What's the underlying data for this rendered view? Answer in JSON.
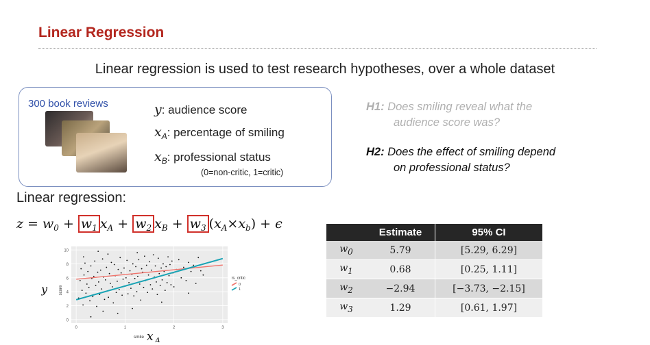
{
  "slide": {
    "title": "Linear Regression",
    "subtitle": "Linear regression is used to test research hypotheses, over a whole dataset"
  },
  "dataset": {
    "label": "300 book reviews",
    "variables": [
      {
        "symbol": "y",
        "subscript": "",
        "description": ": audience score"
      },
      {
        "symbol": "x",
        "subscript": "A",
        "description": ": percentage of smiling"
      },
      {
        "symbol": "x",
        "subscript": "B",
        "description": ": professional status"
      }
    ],
    "status_note": "(0=non-critic, 1=critic)"
  },
  "hypotheses": [
    {
      "tag": "H1:",
      "line1": "Does smiling reveal what the",
      "line2": "audience score was?"
    },
    {
      "tag": "H2:",
      "line1": "Does the effect of smiling depend",
      "line2": "on professional status?"
    }
  ],
  "regression": {
    "label": "Linear regression:",
    "eq": {
      "lhs": "z",
      "eq_sign": " = ",
      "w0": "w",
      "w0_sub": "0",
      "plus": " + ",
      "w1": "w",
      "w1_sub": "1",
      "xa": "x",
      "xa_sub": "A",
      "w2": "w",
      "w2_sub": "2",
      "xb": "x",
      "xb_sub": "B",
      "w3": "w",
      "w3_sub": "3",
      "open": "(",
      "xa2": "x",
      "xa2_sub": "A",
      "times": "×",
      "xb2": "x",
      "xb2_sub": "b",
      "close": ")",
      "eps": "ϵ"
    }
  },
  "coef_table": {
    "headers": [
      "",
      "Estimate",
      "95% CI"
    ],
    "rows": [
      {
        "param": "w",
        "sub": "0",
        "estimate": "5.79",
        "ci": "[5.29, 6.29]"
      },
      {
        "param": "w",
        "sub": "1",
        "estimate": "0.68",
        "ci": "[0.25, 1.11]"
      },
      {
        "param": "w",
        "sub": "2",
        "estimate": "−2.94",
        "ci": "[−3.73, −2.15]"
      },
      {
        "param": "w",
        "sub": "3",
        "estimate": "1.29",
        "ci": "[0.61, 1.97]"
      }
    ]
  },
  "colors": {
    "title": "#b3261e",
    "box_border": "#7b8fc0",
    "noncritic_line": "#f0736b",
    "critic_line": "#19a3b4"
  },
  "chart_data": {
    "type": "scatter",
    "xlabel": "smile",
    "ylabel": "score",
    "big_xlabel": "x",
    "big_xlabel_sub": "A",
    "big_ylabel": "y",
    "xlim": [
      -0.1,
      3.1
    ],
    "ylim": [
      -0.5,
      10.5
    ],
    "x_ticks": [
      "0",
      "1",
      "2",
      "3"
    ],
    "y_ticks": [
      "0",
      "2",
      "4",
      "6",
      "8",
      "10"
    ],
    "legend_title": "is_critic",
    "series": [
      {
        "name": "0",
        "line": {
          "intercept": 5.79,
          "slope": 0.68
        }
      },
      {
        "name": "1",
        "line": {
          "intercept": 2.85,
          "slope": 1.97
        }
      }
    ],
    "points": [
      [
        0.05,
        3.1
      ],
      [
        0.08,
        5.6
      ],
      [
        0.1,
        7.3
      ],
      [
        0.12,
        4.2
      ],
      [
        0.14,
        2.1
      ],
      [
        0.16,
        6.4
      ],
      [
        0.18,
        8.1
      ],
      [
        0.2,
        3.8
      ],
      [
        0.22,
        5.1
      ],
      [
        0.24,
        6.9
      ],
      [
        0.26,
        4.6
      ],
      [
        0.28,
        2.7
      ],
      [
        0.3,
        7.7
      ],
      [
        0.32,
        5.9
      ],
      [
        0.34,
        3.3
      ],
      [
        0.36,
        6.2
      ],
      [
        0.38,
        8.4
      ],
      [
        0.4,
        4.9
      ],
      [
        0.42,
        1.9
      ],
      [
        0.44,
        6.8
      ],
      [
        0.46,
        5.4
      ],
      [
        0.48,
        3.6
      ],
      [
        0.5,
        7.1
      ],
      [
        0.52,
        4.4
      ],
      [
        0.54,
        8.7
      ],
      [
        0.56,
        6.1
      ],
      [
        0.58,
        2.9
      ],
      [
        0.6,
        5.7
      ],
      [
        0.62,
        7.5
      ],
      [
        0.64,
        4.1
      ],
      [
        0.66,
        3.2
      ],
      [
        0.68,
        6.6
      ],
      [
        0.7,
        5.2
      ],
      [
        0.72,
        8.2
      ],
      [
        0.74,
        4.7
      ],
      [
        0.76,
        2.4
      ],
      [
        0.78,
        7.9
      ],
      [
        0.8,
        6.3
      ],
      [
        0.82,
        3.9
      ],
      [
        0.84,
        5.5
      ],
      [
        0.86,
        7.2
      ],
      [
        0.88,
        4.3
      ],
      [
        0.9,
        8.9
      ],
      [
        0.92,
        6.7
      ],
      [
        0.94,
        3.5
      ],
      [
        0.96,
        5.8
      ],
      [
        0.98,
        7.4
      ],
      [
        1.0,
        4.8
      ],
      [
        1.02,
        6.0
      ],
      [
        1.04,
        8.5
      ],
      [
        1.06,
        3.7
      ],
      [
        1.08,
        5.3
      ],
      [
        1.1,
        7.0
      ],
      [
        1.12,
        4.5
      ],
      [
        1.14,
        6.5
      ],
      [
        1.16,
        8.0
      ],
      [
        1.18,
        3.4
      ],
      [
        1.2,
        5.9
      ],
      [
        1.22,
        7.6
      ],
      [
        1.24,
        4.0
      ],
      [
        1.26,
        6.2
      ],
      [
        1.28,
        8.6
      ],
      [
        1.3,
        5.1
      ],
      [
        1.32,
        2.8
      ],
      [
        1.34,
        7.3
      ],
      [
        1.36,
        6.8
      ],
      [
        1.38,
        4.6
      ],
      [
        1.4,
        9.1
      ],
      [
        1.42,
        5.6
      ],
      [
        1.44,
        7.8
      ],
      [
        1.46,
        3.9
      ],
      [
        1.48,
        6.4
      ],
      [
        1.5,
        8.3
      ],
      [
        1.52,
        5.0
      ],
      [
        1.54,
        7.1
      ],
      [
        1.56,
        4.4
      ],
      [
        1.58,
        9.3
      ],
      [
        1.6,
        6.1
      ],
      [
        1.62,
        7.7
      ],
      [
        1.64,
        5.4
      ],
      [
        1.66,
        3.6
      ],
      [
        1.68,
        8.8
      ],
      [
        1.7,
        6.6
      ],
      [
        1.72,
        4.9
      ],
      [
        1.74,
        7.4
      ],
      [
        1.76,
        5.7
      ],
      [
        1.78,
        8.0
      ],
      [
        1.8,
        6.9
      ],
      [
        1.82,
        4.2
      ],
      [
        1.84,
        7.6
      ],
      [
        1.86,
        5.3
      ],
      [
        1.88,
        9.0
      ],
      [
        1.9,
        6.3
      ],
      [
        1.92,
        7.9
      ],
      [
        1.94,
        5.0
      ],
      [
        1.96,
        8.4
      ],
      [
        1.98,
        6.7
      ],
      [
        2.0,
        4.7
      ],
      [
        2.05,
        7.2
      ],
      [
        2.1,
        8.6
      ],
      [
        2.15,
        6.0
      ],
      [
        2.2,
        7.5
      ],
      [
        2.25,
        5.6
      ],
      [
        2.3,
        8.2
      ],
      [
        2.35,
        6.9
      ],
      [
        2.4,
        7.8
      ],
      [
        2.45,
        5.2
      ],
      [
        2.5,
        8.9
      ],
      [
        2.55,
        7.0
      ],
      [
        2.6,
        6.4
      ],
      [
        0.3,
        0.4
      ],
      [
        0.55,
        1.2
      ],
      [
        0.85,
        0.9
      ],
      [
        1.15,
        1.6
      ],
      [
        0.65,
        9.4
      ],
      [
        1.25,
        9.6
      ],
      [
        0.15,
        9.0
      ],
      [
        2.3,
        3.8
      ],
      [
        1.75,
        2.5
      ],
      [
        0.45,
        9.8
      ]
    ]
  }
}
